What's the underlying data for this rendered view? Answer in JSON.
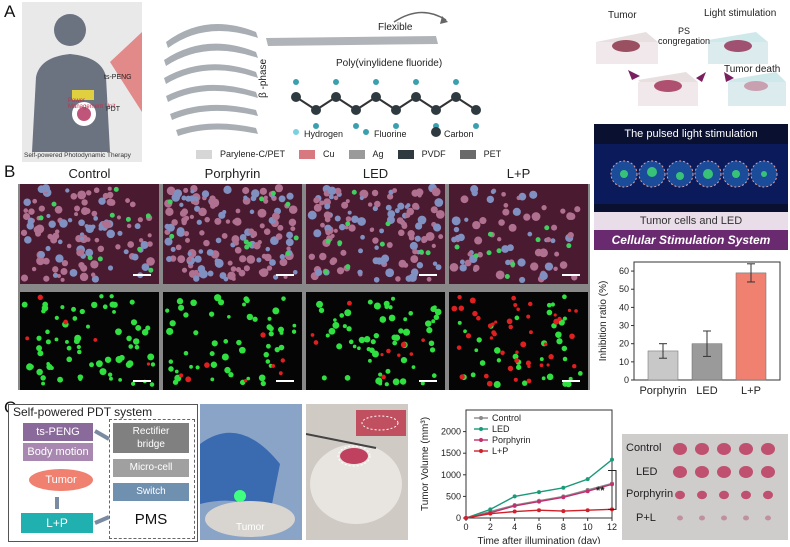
{
  "panel_labels": {
    "a": "A",
    "b": "B",
    "c": "C"
  },
  "panel_a": {
    "human_caption": "Self-powered Photodynamic Therapy",
    "human_labels": {
      "device": "ts-PENG",
      "pmu": "Power\nManagement Unit",
      "pdt": "PDT"
    },
    "flexible_label": "Flexible",
    "polymer_title": "Poly(vinylidene fluoride)",
    "beta_phase": "β -phase",
    "atoms": {
      "hydrogen": "Hydrogen",
      "fluorine": "Fluorine",
      "carbon": "Carbon"
    },
    "layer_legend": [
      {
        "label": "Parylene-C/PET",
        "color": "#d6d6d6"
      },
      {
        "label": "Cu",
        "color": "#d8797f"
      },
      {
        "label": "Ag",
        "color": "#9a9a9a"
      },
      {
        "label": "PVDF",
        "color": "#2f3a40"
      },
      {
        "label": "PET",
        "color": "#6a6a6a"
      }
    ],
    "process": {
      "tumor": "Tumor",
      "ps": "PS\ncongregation",
      "light": "Light stimulation",
      "death": "Tumor death"
    }
  },
  "panel_b": {
    "columns": [
      "Control",
      "Porphyrin",
      "LED",
      "L+P"
    ],
    "stim_title": "The pulsed light stimulation",
    "stim_caption1": "Tumor cells and LED",
    "stim_caption2": "Cellular Stimulation System",
    "chart_data": {
      "type": "bar",
      "categories": [
        "Porphyrin",
        "LED",
        "L+P"
      ],
      "values": [
        16,
        20,
        59
      ],
      "errors": [
        4,
        7,
        5
      ],
      "colors": [
        "#c8c8c8",
        "#9a9a9a",
        "#f08070"
      ],
      "ylabel": "Inhibition ratio (%)",
      "ylim": [
        0,
        65
      ],
      "yticks": [
        0,
        10,
        20,
        30,
        40,
        50,
        60
      ]
    }
  },
  "panel_c": {
    "system_title": "Self-powered PDT system",
    "blocks": {
      "peng": "ts-PENG",
      "body": "Body motion",
      "tumor": "Tumor",
      "lp": "L+P",
      "rectifier": "Rectifier\nbridge",
      "micro": "Micro-cell",
      "switch": "Switch",
      "pms": "PMS"
    },
    "photo_label": "Tumor",
    "chart_data": {
      "type": "line",
      "x": [
        0,
        2,
        4,
        6,
        8,
        10,
        12
      ],
      "series": [
        {
          "name": "Control",
          "color": "#8a8a8a",
          "values": [
            0,
            150,
            300,
            400,
            500,
            650,
            800
          ]
        },
        {
          "name": "LED",
          "color": "#1a9a7a",
          "values": [
            0,
            200,
            500,
            600,
            700,
            900,
            1350
          ]
        },
        {
          "name": "Porphyrin",
          "color": "#c03070",
          "values": [
            0,
            120,
            280,
            380,
            480,
            620,
            780
          ]
        },
        {
          "name": "L+P",
          "color": "#d0202a",
          "values": [
            0,
            100,
            150,
            180,
            160,
            180,
            200
          ]
        }
      ],
      "xlabel": "Time after illumination (day)",
      "ylabel": "Tumor Volume (mm³)",
      "xlim": [
        0,
        12
      ],
      "ylim": [
        0,
        2500
      ],
      "yticks": [
        0,
        500,
        1000,
        1500,
        2000
      ],
      "significance": "**"
    },
    "photo_rows": [
      "Control",
      "LED",
      "Porphyrin",
      "P+L"
    ]
  }
}
